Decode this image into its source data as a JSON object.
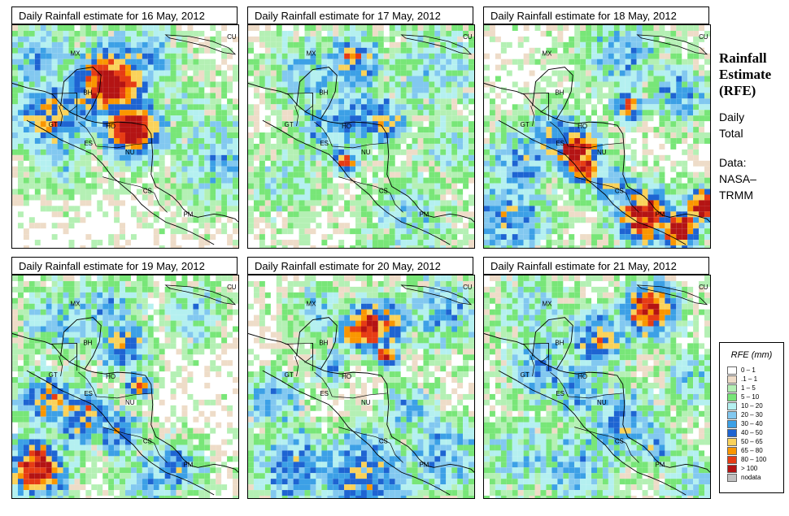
{
  "panels": [
    {
      "title": "Daily Rainfall estimate for  16 May, 2012",
      "seed": 16,
      "blobs": [
        [
          42,
          25,
          18,
          3.4
        ],
        [
          52,
          45,
          14,
          3.6
        ],
        [
          15,
          40,
          20,
          2.2
        ],
        [
          55,
          15,
          20,
          1.8
        ],
        [
          30,
          35,
          15,
          2.0
        ],
        [
          48,
          55,
          10,
          1.6
        ],
        [
          20,
          60,
          15,
          1.3
        ],
        [
          75,
          35,
          20,
          1.0
        ],
        [
          90,
          60,
          25,
          1.4
        ],
        [
          10,
          15,
          20,
          1.5
        ]
      ],
      "base": 0.4
    },
    {
      "title": "Daily Rainfall estimate for  17 May, 2012",
      "seed": 17,
      "blobs": [
        [
          45,
          15,
          14,
          2.3
        ],
        [
          58,
          42,
          12,
          2.2
        ],
        [
          45,
          40,
          18,
          1.8
        ],
        [
          30,
          45,
          15,
          1.5
        ],
        [
          40,
          55,
          10,
          1.4
        ],
        [
          42,
          60,
          6,
          3.0
        ],
        [
          80,
          20,
          25,
          1.2
        ],
        [
          15,
          70,
          20,
          1.0
        ],
        [
          70,
          85,
          25,
          1.1
        ],
        [
          25,
          20,
          20,
          1.4
        ],
        [
          90,
          55,
          20,
          1.0
        ]
      ],
      "base": 0.45
    },
    {
      "title": "Daily Rainfall estimate for  18 May, 2012",
      "seed": 18,
      "blobs": [
        [
          40,
          55,
          12,
          3.1
        ],
        [
          42,
          62,
          9,
          3.3
        ],
        [
          62,
          35,
          8,
          2.5
        ],
        [
          70,
          85,
          15,
          3.0
        ],
        [
          85,
          90,
          10,
          3.4
        ],
        [
          95,
          80,
          8,
          3.4
        ],
        [
          30,
          50,
          15,
          2.0
        ],
        [
          15,
          60,
          18,
          1.6
        ],
        [
          55,
          70,
          12,
          1.8
        ],
        [
          85,
          30,
          15,
          1.6
        ],
        [
          10,
          85,
          20,
          1.8
        ],
        [
          60,
          12,
          20,
          1.4
        ]
      ],
      "base": 0.5
    },
    {
      "title": "Daily Rainfall estimate for  19 May, 2012",
      "seed": 19,
      "blobs": [
        [
          10,
          85,
          14,
          3.2
        ],
        [
          55,
          48,
          6,
          3.0
        ],
        [
          48,
          30,
          14,
          2.0
        ],
        [
          30,
          62,
          15,
          2.2
        ],
        [
          15,
          55,
          14,
          2.3
        ],
        [
          45,
          70,
          12,
          2.0
        ],
        [
          40,
          15,
          18,
          1.4
        ],
        [
          70,
          85,
          14,
          1.8
        ],
        [
          20,
          20,
          20,
          1.4
        ],
        [
          80,
          15,
          15,
          1.3
        ],
        [
          60,
          90,
          15,
          1.5
        ]
      ],
      "base": 0.5
    },
    {
      "title": "Daily Rainfall estimate for  20 May, 2012",
      "seed": 20,
      "blobs": [
        [
          52,
          22,
          12,
          3.2
        ],
        [
          60,
          35,
          6,
          3.0
        ],
        [
          45,
          25,
          8,
          2.8
        ],
        [
          60,
          20,
          12,
          2.6
        ],
        [
          50,
          90,
          25,
          2.0
        ],
        [
          20,
          85,
          20,
          1.9
        ],
        [
          35,
          40,
          10,
          1.6
        ],
        [
          10,
          55,
          15,
          1.6
        ],
        [
          70,
          60,
          15,
          1.4
        ],
        [
          85,
          15,
          20,
          1.5
        ],
        [
          30,
          15,
          15,
          1.3
        ],
        [
          85,
          80,
          20,
          1.6
        ]
      ],
      "base": 0.45
    },
    {
      "title": "Daily Rainfall estimate for  21 May, 2012",
      "seed": 21,
      "blobs": [
        [
          72,
          14,
          14,
          3.0
        ],
        [
          50,
          28,
          15,
          2.2
        ],
        [
          40,
          50,
          15,
          1.6
        ],
        [
          25,
          40,
          20,
          1.5
        ],
        [
          60,
          65,
          18,
          1.8
        ],
        [
          75,
          75,
          12,
          1.6
        ],
        [
          40,
          85,
          20,
          1.5
        ],
        [
          90,
          45,
          15,
          1.3
        ],
        [
          15,
          80,
          20,
          1.3
        ],
        [
          90,
          90,
          15,
          1.2
        ],
        [
          20,
          15,
          20,
          1.2
        ]
      ],
      "base": 0.45
    }
  ],
  "country_labels": [
    "MX",
    "CU",
    "BH",
    "GT",
    "HO",
    "ES",
    "NU",
    "CS",
    "PM"
  ],
  "sidebar": {
    "title_lines": [
      "Rainfall",
      "Estimate",
      "(RFE)"
    ],
    "sub_lines": [
      "Daily",
      "Total"
    ],
    "data_lines": [
      "Data:",
      "NASA–",
      "TRMM"
    ]
  },
  "legend": {
    "title": "RFE (mm)",
    "items": [
      {
        "label": "0 – 1",
        "color": "#ffffff"
      },
      {
        "label": ".1 – 1",
        "color": "#eedcc8"
      },
      {
        "label": "1 – 5",
        "color": "#b4f0b4"
      },
      {
        "label": "5 – 10",
        "color": "#78e678"
      },
      {
        "label": "10 – 20",
        "color": "#b4f0f0"
      },
      {
        "label": "20 – 30",
        "color": "#82c8f0"
      },
      {
        "label": "30 – 40",
        "color": "#3ca0e6"
      },
      {
        "label": "40 – 50",
        "color": "#1e64d2"
      },
      {
        "label": "50 – 65",
        "color": "#fad25a"
      },
      {
        "label": "65 – 80",
        "color": "#fa9600"
      },
      {
        "label": "80 – 100",
        "color": "#e63c14"
      },
      {
        "label": "> 100",
        "color": "#b41414"
      },
      {
        "label": "nodata",
        "color": "#c0c0c0"
      }
    ]
  }
}
